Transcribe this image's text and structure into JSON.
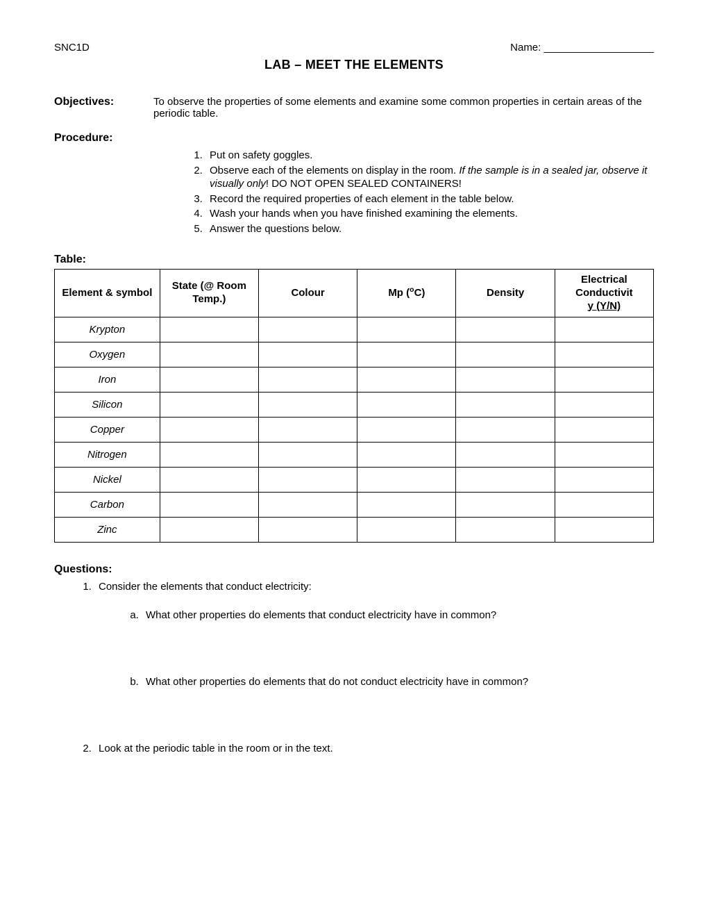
{
  "header": {
    "course_code": "SNC1D",
    "name_label": "Name: ___________________",
    "title": "LAB – MEET THE ELEMENTS"
  },
  "objectives": {
    "label": "Objectives:",
    "text": "To observe the properties of some elements and examine some common properties in certain areas of the periodic table."
  },
  "procedure": {
    "label": "Procedure:",
    "steps": {
      "s1": "Put on safety goggles.",
      "s2_a": "Observe each of the elements on display in the room.  ",
      "s2_b": "If the sample is in a sealed jar, observe it visually only",
      "s2_c": "!  DO NOT OPEN SEALED CONTAINERS!",
      "s3": "Record the required properties of each element in the table below.",
      "s4": "Wash your hands when you have finished examining the elements.",
      "s5": "Answer the questions below."
    }
  },
  "table": {
    "label": "Table:",
    "headers": {
      "h1": "Element & symbol",
      "h2": "State (@ Room Temp.)",
      "h3": "Colour",
      "h4_pre": "Mp (",
      "h4_sup": "o",
      "h4_post": "C)",
      "h5": "Density",
      "h6": "Electrical Conductivit",
      "h6_u": "y (Y/N)"
    },
    "rows": [
      "Krypton",
      "Oxygen",
      "Iron",
      "Silicon",
      "Copper",
      "Nitrogen",
      "Nickel",
      "Carbon",
      "Zinc"
    ]
  },
  "questions": {
    "label": "Questions:",
    "q1": "Consider the elements that conduct electricity:",
    "q1a": "What other properties do elements that conduct electricity have in common?",
    "q1b": "What other properties do elements that do not conduct electricity have in common?",
    "q2": "Look at the periodic table in the room or in the text."
  }
}
